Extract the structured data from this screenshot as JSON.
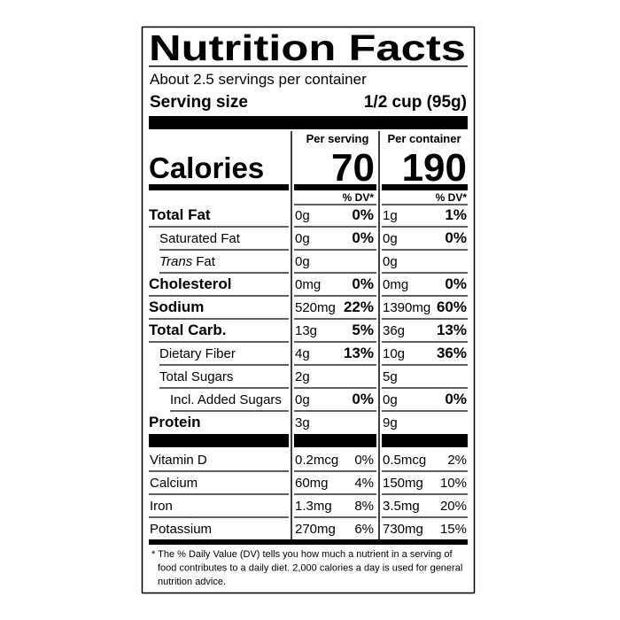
{
  "title": "Nutrition Facts",
  "servings": "About 2.5 servings per container",
  "serving_size_label": "Serving size",
  "serving_size": "1/2 cup (95g)",
  "columns": [
    "Per serving",
    "Per container"
  ],
  "calories": {
    "label": "Calories",
    "values": [
      "70",
      "190"
    ]
  },
  "dv_headers": [
    "% DV*",
    "% DV*"
  ],
  "nutrients": [
    {
      "label": "Total Fat",
      "cells": [
        [
          "0g",
          "0%"
        ],
        [
          "1g",
          "1%"
        ]
      ]
    },
    {
      "label": "Saturated Fat",
      "cells": [
        [
          "0g",
          "0%"
        ],
        [
          "0g",
          "0%"
        ]
      ]
    },
    {
      "label_italic": "Trans",
      "label": "Fat",
      "cells": [
        [
          "0g"
        ],
        [
          "0g"
        ]
      ]
    },
    {
      "label": "Cholesterol",
      "cells": [
        [
          "0mg",
          "0%"
        ],
        [
          "0mg",
          "0%"
        ]
      ]
    },
    {
      "label": "Sodium",
      "cells": [
        [
          "520mg",
          "22%"
        ],
        [
          "1390mg",
          "60%"
        ]
      ]
    },
    {
      "label": "Total Carb.",
      "cells": [
        [
          "13g",
          "5%"
        ],
        [
          "36g",
          "13%"
        ]
      ]
    },
    {
      "label": "Dietary Fiber",
      "cells": [
        [
          "4g",
          "13%"
        ],
        [
          "10g",
          "36%"
        ]
      ]
    },
    {
      "label": "Total Sugars",
      "cells": [
        [
          "2g"
        ],
        [
          "5g"
        ]
      ]
    },
    {
      "label": "Incl. Added Sugars",
      "cells": [
        [
          "0g",
          "0%"
        ],
        [
          "0g",
          "0%"
        ]
      ]
    },
    {
      "label": "Protein",
      "cells": [
        [
          "3g"
        ],
        [
          "9g"
        ]
      ]
    }
  ],
  "vitamins": [
    {
      "label": "Vitamin D",
      "cells": [
        [
          "0.2mcg",
          "0%"
        ],
        [
          "0.5mcg",
          "2%"
        ]
      ]
    },
    {
      "label": "Calcium",
      "cells": [
        [
          "60mg",
          "4%"
        ],
        [
          "150mg",
          "10%"
        ]
      ]
    },
    {
      "label": "Iron",
      "cells": [
        [
          "1.3mg",
          "8%"
        ],
        [
          "3.5mg",
          "20%"
        ]
      ]
    },
    {
      "label": "Potassium",
      "cells": [
        [
          "270mg",
          "6%"
        ],
        [
          "730mg",
          "15%"
        ]
      ]
    }
  ],
  "footnote": [
    "* The % Daily Value (DV) tells you how much a nutrient in a serving of",
    "food contributes to a daily diet. 2,000 calories a day is used for general",
    "nutrition advice."
  ]
}
